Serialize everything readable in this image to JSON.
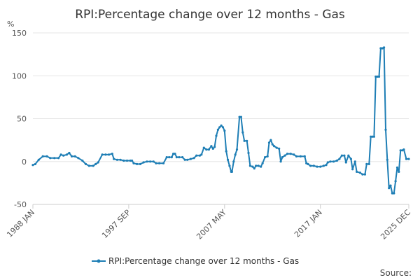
{
  "chart_data": {
    "type": "line",
    "title": "RPI:Percentage change over 12 months - Gas",
    "y_unit_label": "%",
    "ylim": [
      -50,
      150
    ],
    "y_ticks": [
      150,
      100,
      50,
      0,
      -50
    ],
    "grid": true,
    "x_range": [
      "1988-01",
      "2025-12"
    ],
    "x_ticks": [
      {
        "date": "1988-01",
        "label": "1988 JAN"
      },
      {
        "date": "1997-09",
        "label": "1997 SEP"
      },
      {
        "date": "2007-05",
        "label": "2007 MAY"
      },
      {
        "date": "2017-01",
        "label": "2017 JAN"
      },
      {
        "date": "2025-12",
        "label": "2025 DEC"
      }
    ],
    "legend_position": "bottom",
    "series": [
      {
        "name": "RPI:Percentage change over 12 months - Gas",
        "color": "#1e7eb5",
        "points": [
          [
            "1988-01",
            -4
          ],
          [
            "1988-04",
            -3
          ],
          [
            "1988-08",
            2
          ],
          [
            "1989-01",
            6
          ],
          [
            "1989-06",
            6
          ],
          [
            "1989-10",
            4
          ],
          [
            "1990-03",
            4
          ],
          [
            "1990-08",
            4
          ],
          [
            "1990-11",
            8
          ],
          [
            "1991-02",
            7
          ],
          [
            "1991-06",
            8
          ],
          [
            "1991-09",
            10
          ],
          [
            "1991-12",
            6
          ],
          [
            "1992-04",
            6
          ],
          [
            "1992-08",
            4
          ],
          [
            "1993-01",
            1
          ],
          [
            "1993-05",
            -3
          ],
          [
            "1993-09",
            -5
          ],
          [
            "1994-02",
            -5
          ],
          [
            "1994-05",
            -3
          ],
          [
            "1994-08",
            -1
          ],
          [
            "1995-01",
            8
          ],
          [
            "1995-05",
            8
          ],
          [
            "1995-09",
            8
          ],
          [
            "1996-01",
            9
          ],
          [
            "1996-03",
            3
          ],
          [
            "1996-07",
            2
          ],
          [
            "1996-11",
            2
          ],
          [
            "1997-03",
            1
          ],
          [
            "1997-07",
            1
          ],
          [
            "1997-11",
            1
          ],
          [
            "1998-01",
            1
          ],
          [
            "1998-03",
            -2
          ],
          [
            "1998-07",
            -3
          ],
          [
            "1998-11",
            -3
          ],
          [
            "1999-03",
            -1
          ],
          [
            "1999-07",
            0
          ],
          [
            "1999-11",
            0
          ],
          [
            "2000-03",
            0
          ],
          [
            "2000-06",
            -2
          ],
          [
            "2000-10",
            -2
          ],
          [
            "2001-03",
            -2
          ],
          [
            "2001-07",
            5
          ],
          [
            "2001-10",
            5
          ],
          [
            "2002-01",
            5
          ],
          [
            "2002-03",
            9
          ],
          [
            "2002-05",
            9
          ],
          [
            "2002-07",
            5
          ],
          [
            "2002-10",
            5
          ],
          [
            "2003-02",
            5
          ],
          [
            "2003-05",
            2
          ],
          [
            "2003-08",
            2
          ],
          [
            "2003-12",
            3
          ],
          [
            "2004-04",
            4
          ],
          [
            "2004-07",
            7
          ],
          [
            "2004-11",
            7
          ],
          [
            "2005-01",
            8
          ],
          [
            "2005-04",
            16
          ],
          [
            "2005-07",
            14
          ],
          [
            "2005-10",
            14
          ],
          [
            "2006-01",
            18
          ],
          [
            "2006-03",
            15
          ],
          [
            "2006-05",
            17
          ],
          [
            "2006-07",
            30
          ],
          [
            "2006-09",
            37
          ],
          [
            "2006-11",
            40
          ],
          [
            "2007-01",
            42
          ],
          [
            "2007-03",
            40
          ],
          [
            "2007-05",
            36
          ],
          [
            "2007-07",
            12
          ],
          [
            "2007-09",
            2
          ],
          [
            "2007-11",
            -5
          ],
          [
            "2008-01",
            -12
          ],
          [
            "2008-02",
            -12
          ],
          [
            "2008-04",
            0
          ],
          [
            "2008-06",
            8
          ],
          [
            "2008-08",
            14
          ],
          [
            "2008-11",
            52
          ],
          [
            "2009-01",
            52
          ],
          [
            "2009-03",
            34
          ],
          [
            "2009-05",
            24
          ],
          [
            "2009-08",
            24
          ],
          [
            "2009-10",
            10
          ],
          [
            "2009-12",
            -5
          ],
          [
            "2010-03",
            -6
          ],
          [
            "2010-05",
            -8
          ],
          [
            "2010-07",
            -5
          ],
          [
            "2010-10",
            -5
          ],
          [
            "2011-01",
            -6
          ],
          [
            "2011-03",
            -2
          ],
          [
            "2011-06",
            5
          ],
          [
            "2011-09",
            6
          ],
          [
            "2011-11",
            22
          ],
          [
            "2012-01",
            25
          ],
          [
            "2012-03",
            20
          ],
          [
            "2012-05",
            18
          ],
          [
            "2012-08",
            16
          ],
          [
            "2012-11",
            15
          ],
          [
            "2013-01",
            0
          ],
          [
            "2013-03",
            5
          ],
          [
            "2013-06",
            7
          ],
          [
            "2013-09",
            9
          ],
          [
            "2014-01",
            9
          ],
          [
            "2014-05",
            8
          ],
          [
            "2014-08",
            6
          ],
          [
            "2015-01",
            6
          ],
          [
            "2015-06",
            6
          ],
          [
            "2015-08",
            -2
          ],
          [
            "2015-10",
            -3
          ],
          [
            "2016-01",
            -5
          ],
          [
            "2016-05",
            -5
          ],
          [
            "2016-09",
            -6
          ],
          [
            "2017-01",
            -6
          ],
          [
            "2017-05",
            -5
          ],
          [
            "2017-08",
            -4
          ],
          [
            "2017-10",
            -1
          ],
          [
            "2018-01",
            0
          ],
          [
            "2018-05",
            0
          ],
          [
            "2018-09",
            1
          ],
          [
            "2018-12",
            3
          ],
          [
            "2019-03",
            7
          ],
          [
            "2019-06",
            7
          ],
          [
            "2019-08",
            -1
          ],
          [
            "2019-11",
            7
          ],
          [
            "2020-02",
            3
          ],
          [
            "2020-04",
            -9
          ],
          [
            "2020-07",
            0
          ],
          [
            "2020-09",
            -12
          ],
          [
            "2021-01",
            -13
          ],
          [
            "2021-04",
            -15
          ],
          [
            "2021-07",
            -15
          ],
          [
            "2021-09",
            -3
          ],
          [
            "2021-12",
            -3
          ],
          [
            "2022-02",
            29
          ],
          [
            "2022-04",
            29
          ],
          [
            "2022-06",
            29
          ],
          [
            "2022-08",
            99
          ],
          [
            "2022-10",
            99
          ],
          [
            "2022-12",
            99
          ],
          [
            "2023-02",
            132
          ],
          [
            "2023-04",
            132
          ],
          [
            "2023-06",
            133
          ],
          [
            "2023-08",
            37
          ],
          [
            "2023-10",
            2
          ],
          [
            "2023-12",
            -31
          ],
          [
            "2024-02",
            -28
          ],
          [
            "2024-04",
            -37
          ],
          [
            "2024-06",
            -37
          ],
          [
            "2024-08",
            -23
          ],
          [
            "2024-10",
            -7
          ],
          [
            "2024-12",
            -12
          ],
          [
            "2025-02",
            13
          ],
          [
            "2025-04",
            13
          ],
          [
            "2025-06",
            14
          ],
          [
            "2025-09",
            3
          ],
          [
            "2025-12",
            3
          ]
        ]
      }
    ]
  },
  "source_label": "Source:"
}
